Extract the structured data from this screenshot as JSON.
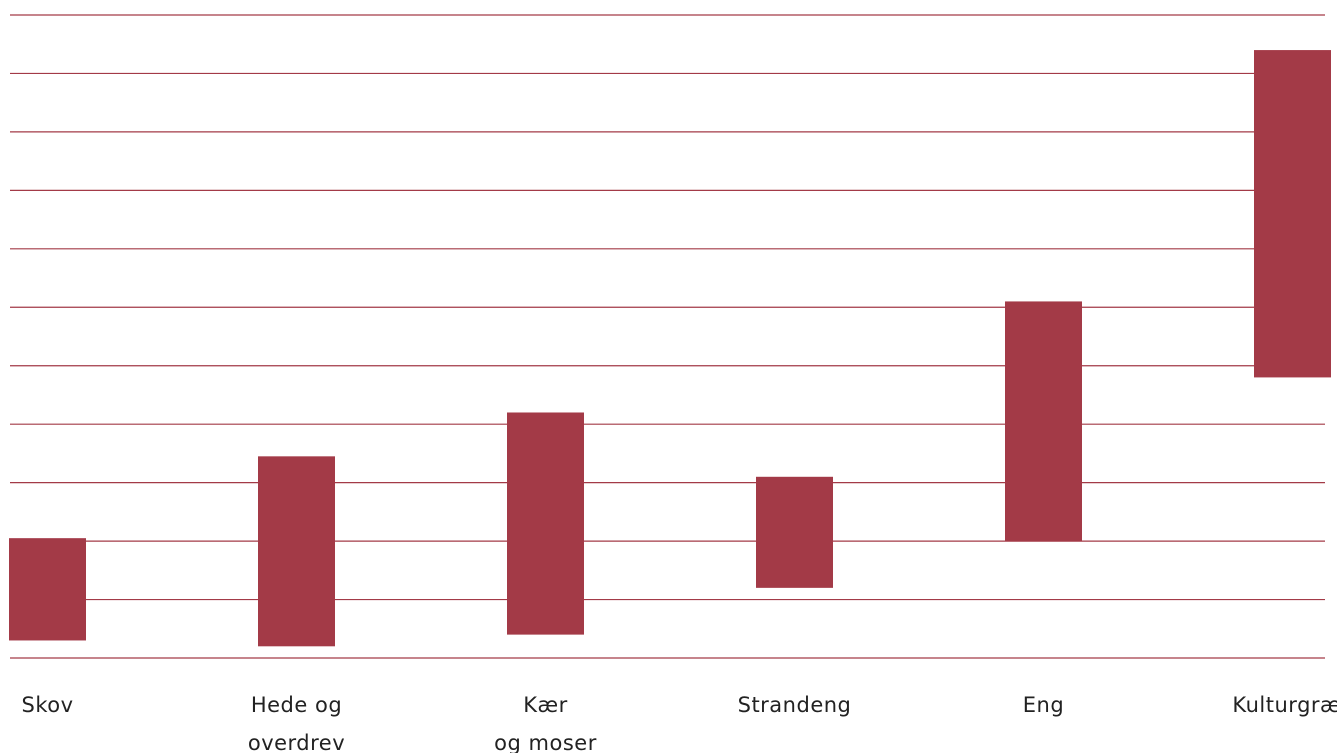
{
  "chart_data": {
    "type": "floating-bar",
    "title": "",
    "xlabel": "",
    "ylabel": "",
    "ylim": [
      0,
      11
    ],
    "grid": true,
    "grid_count": 12,
    "legend": "none",
    "categories": [
      [
        "Skov"
      ],
      [
        "Hede og",
        "overdrev"
      ],
      [
        "Kær",
        "og moser"
      ],
      [
        "Strandeng"
      ],
      [
        "Eng"
      ],
      [
        "Kulturgræs"
      ]
    ],
    "ranges": [
      {
        "low": 0.3,
        "high": 2.05
      },
      {
        "low": 0.2,
        "high": 3.45
      },
      {
        "low": 0.4,
        "high": 4.2
      },
      {
        "low": 1.2,
        "high": 3.1
      },
      {
        "low": 2.0,
        "high": 6.1
      },
      {
        "low": 4.8,
        "high": 10.4
      }
    ]
  },
  "colors": {
    "bar": "#a33a47",
    "grid": "#a33a47",
    "text": "#222222"
  }
}
